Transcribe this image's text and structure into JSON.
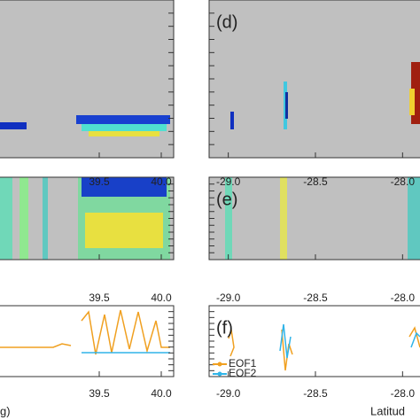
{
  "chart_data": [
    {
      "type": "heatmap",
      "xlim": [
        38.7,
        40.1
      ],
      "xticks": [
        39.5,
        {
          "value": 40.0,
          "label": "40.0"
        }
      ]
    },
    {
      "type": "heatmap",
      "xlim": [
        38.7,
        40.1
      ],
      "xticks": [
        39.5,
        {
          "value": 40.0,
          "label": "40.0"
        }
      ]
    },
    {
      "type": "line",
      "xlim": [
        38.7,
        40.1
      ],
      "xticks": [
        39.5,
        {
          "value": 40.0,
          "label": "40.0"
        }
      ],
      "xlabel": "g)"
    },
    {
      "type": "heatmap",
      "panel_label": "(d)",
      "xlim": [
        -29.11,
        -27.9
      ],
      "xticks": [
        {
          "value": -29.0,
          "label": "-29.0"
        },
        -28.5,
        {
          "value": -28.0,
          "label": "-28.0"
        }
      ]
    },
    {
      "type": "heatmap",
      "panel_label": "(e)",
      "xlim": [
        -29.11,
        -27.9
      ],
      "xticks": [
        {
          "value": -29.0,
          "label": "-29.0"
        },
        -28.5,
        {
          "value": -28.0,
          "label": "-28.0"
        }
      ]
    },
    {
      "type": "line",
      "panel_label": "(f)",
      "xlim": [
        -29.11,
        -27.9
      ],
      "xticks": [
        {
          "value": -29.0,
          "label": "-29.0"
        },
        -28.5,
        {
          "value": -28.0,
          "label": "-28.0"
        }
      ],
      "xlabel": "Latitud",
      "series": [
        {
          "name": "EOF1",
          "color": "#f0a020"
        },
        {
          "name": "EOF2",
          "color": "#30b4e8"
        }
      ]
    }
  ]
}
